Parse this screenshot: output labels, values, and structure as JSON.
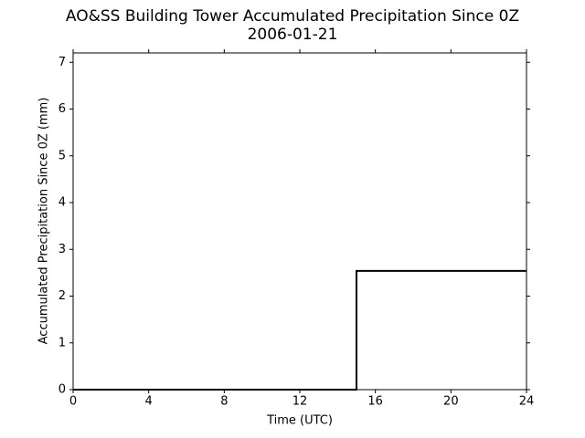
{
  "chart_data": {
    "type": "line",
    "title": "AO&SS Building Tower Accumulated Precipitation Since 0Z",
    "subtitle": "2006-01-21",
    "x_label": "Time (UTC)",
    "y_label": "Accumulated Precipitation Since 0Z (mm)",
    "xlim": [
      0,
      24
    ],
    "xticks": [
      0,
      4,
      8,
      12,
      16,
      20,
      24
    ],
    "ylim": [
      0,
      7.2
    ],
    "yticks": [
      0,
      1,
      2,
      3,
      4,
      5,
      6,
      7
    ],
    "grid": false,
    "series": [
      {
        "color": "#000000",
        "x": [
          0,
          15,
          15,
          24
        ],
        "values": [
          0,
          0,
          2.54,
          2.54
        ]
      }
    ]
  }
}
